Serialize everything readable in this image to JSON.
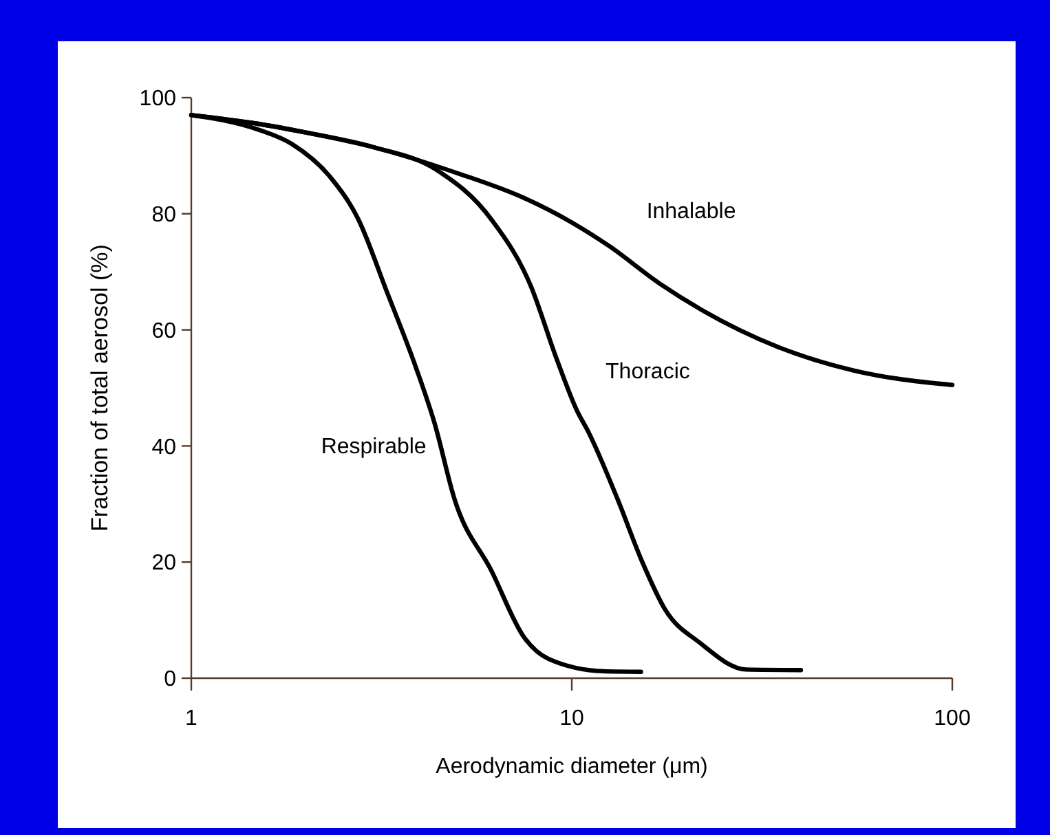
{
  "chart_data": {
    "type": "line",
    "xlabel": "Aerodynamic diameter (μm)",
    "ylabel": "Fraction of total aerosol (%)",
    "log": "x",
    "xlim": [
      1,
      100
    ],
    "ylim": [
      0,
      100
    ],
    "xticks": [
      1,
      10,
      100
    ],
    "yticks": [
      0,
      20,
      40,
      60,
      80,
      100
    ],
    "grid": false,
    "marker": "none",
    "line_style": "solid",
    "series": [
      {
        "name": "Inhalable",
        "color": "#000000",
        "x": [
          1,
          1.5,
          2,
          3,
          5,
          7.5,
          10,
          12.5,
          17,
          22,
          35,
          55,
          100
        ],
        "values": [
          97,
          95.5,
          94,
          91.5,
          87,
          82.7,
          78.5,
          74.5,
          68,
          63.4,
          57,
          53,
          50.5
        ]
      },
      {
        "name": "Thoracic",
        "color": "#000000",
        "x": [
          1,
          1.5,
          2,
          3,
          4.4,
          6.15,
          7.8,
          9.1,
          10.3,
          11.1,
          13.2,
          15.3,
          17.6,
          21.7,
          28.7,
          40
        ],
        "values": [
          97,
          95.5,
          94,
          91.5,
          87.6,
          79,
          67.6,
          55.2,
          46.2,
          42.2,
          30.8,
          20.1,
          11.8,
          6.1,
          1.5,
          1.4
        ]
      },
      {
        "name": "Respirable",
        "color": "#000000",
        "x": [
          1,
          1.5,
          1.84,
          2.32,
          2.75,
          3.26,
          3.89,
          4.36,
          4.92,
          6.15,
          7.5,
          8.7,
          12.1,
          15.2
        ],
        "values": [
          97,
          94.5,
          92,
          86.3,
          79,
          66.7,
          53.6,
          43.9,
          30.8,
          18.5,
          7,
          3.3,
          1.2,
          1.1
        ]
      }
    ]
  }
}
